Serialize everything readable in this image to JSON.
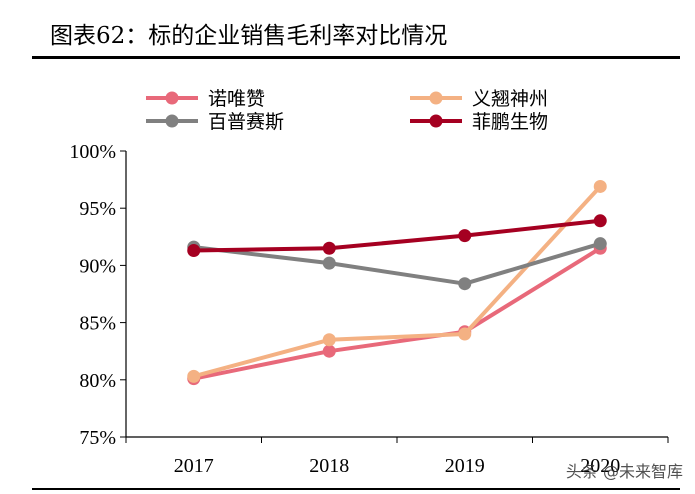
{
  "chart_data": {
    "type": "line",
    "title": "图表62：标的企业销售毛利率对比情况",
    "categories": [
      "2017",
      "2018",
      "2019",
      "2020"
    ],
    "ylim": [
      75,
      100
    ],
    "yticks": [
      "75%",
      "80%",
      "85%",
      "90%",
      "95%",
      "100%"
    ],
    "legend_position": "top",
    "series": [
      {
        "name": "诺唯赞",
        "color": "#e8697a",
        "values": [
          80.1,
          82.5,
          84.2,
          91.5
        ]
      },
      {
        "name": "义翘神州",
        "color": "#f4b183",
        "values": [
          80.3,
          83.5,
          84.0,
          96.9
        ]
      },
      {
        "name": "百普赛斯",
        "color": "#808080",
        "values": [
          91.6,
          90.2,
          88.4,
          91.9
        ]
      },
      {
        "name": "菲鹏生物",
        "color": "#a50021",
        "values": [
          91.3,
          91.5,
          92.6,
          93.9
        ]
      }
    ]
  },
  "watermark": "头条 @未来智库"
}
